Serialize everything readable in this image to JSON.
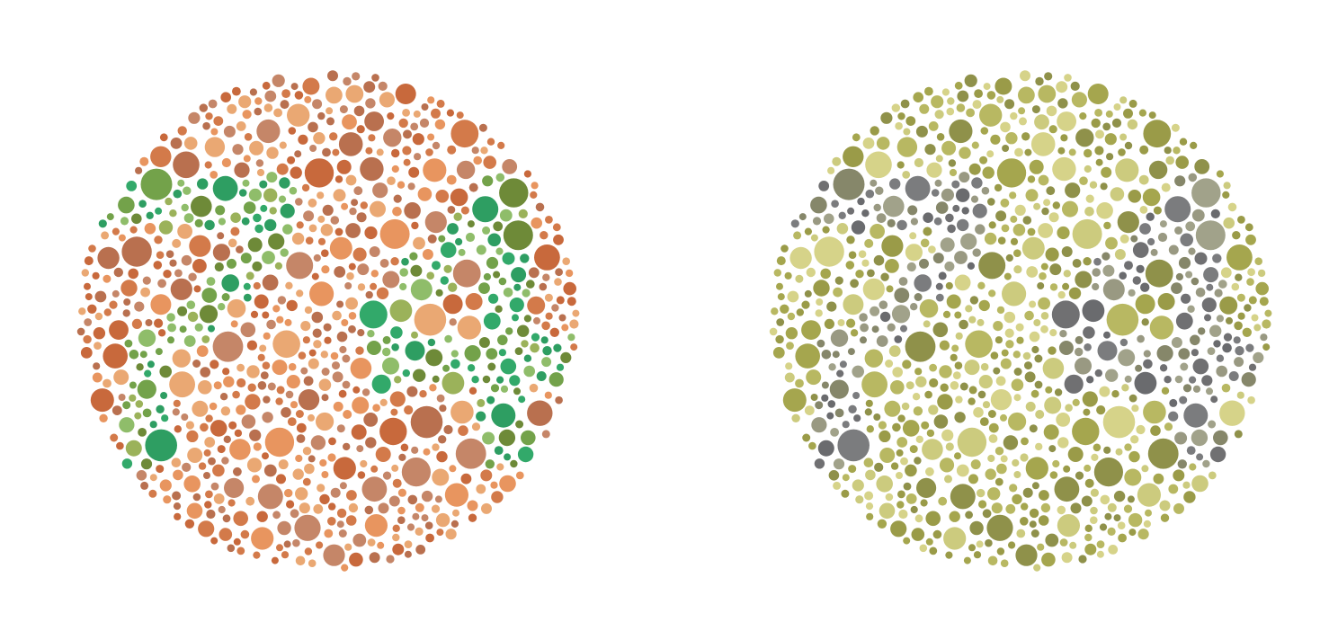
{
  "plates": [
    {
      "id": "normal-vision",
      "hidden_number": "74",
      "palette": {
        "background": [
          "#c8693c",
          "#e8955f",
          "#eaa873",
          "#d37a4a",
          "#b9704f",
          "#c58668"
        ],
        "figure": [
          "#32a96a",
          "#2e9e62",
          "#8fbd6a",
          "#73a24a",
          "#9bb25a",
          "#6e8a38"
        ]
      }
    },
    {
      "id": "simulated-color-deficiency",
      "hidden_number": "74",
      "palette": {
        "background": [
          "#a5a64e",
          "#cccb7e",
          "#b8b862",
          "#9a9b48",
          "#d6d389",
          "#8f914a"
        ],
        "figure": [
          "#707072",
          "#7b7c7e",
          "#999982",
          "#86876a",
          "#6a6b6e",
          "#a1a28a"
        ]
      }
    }
  ]
}
